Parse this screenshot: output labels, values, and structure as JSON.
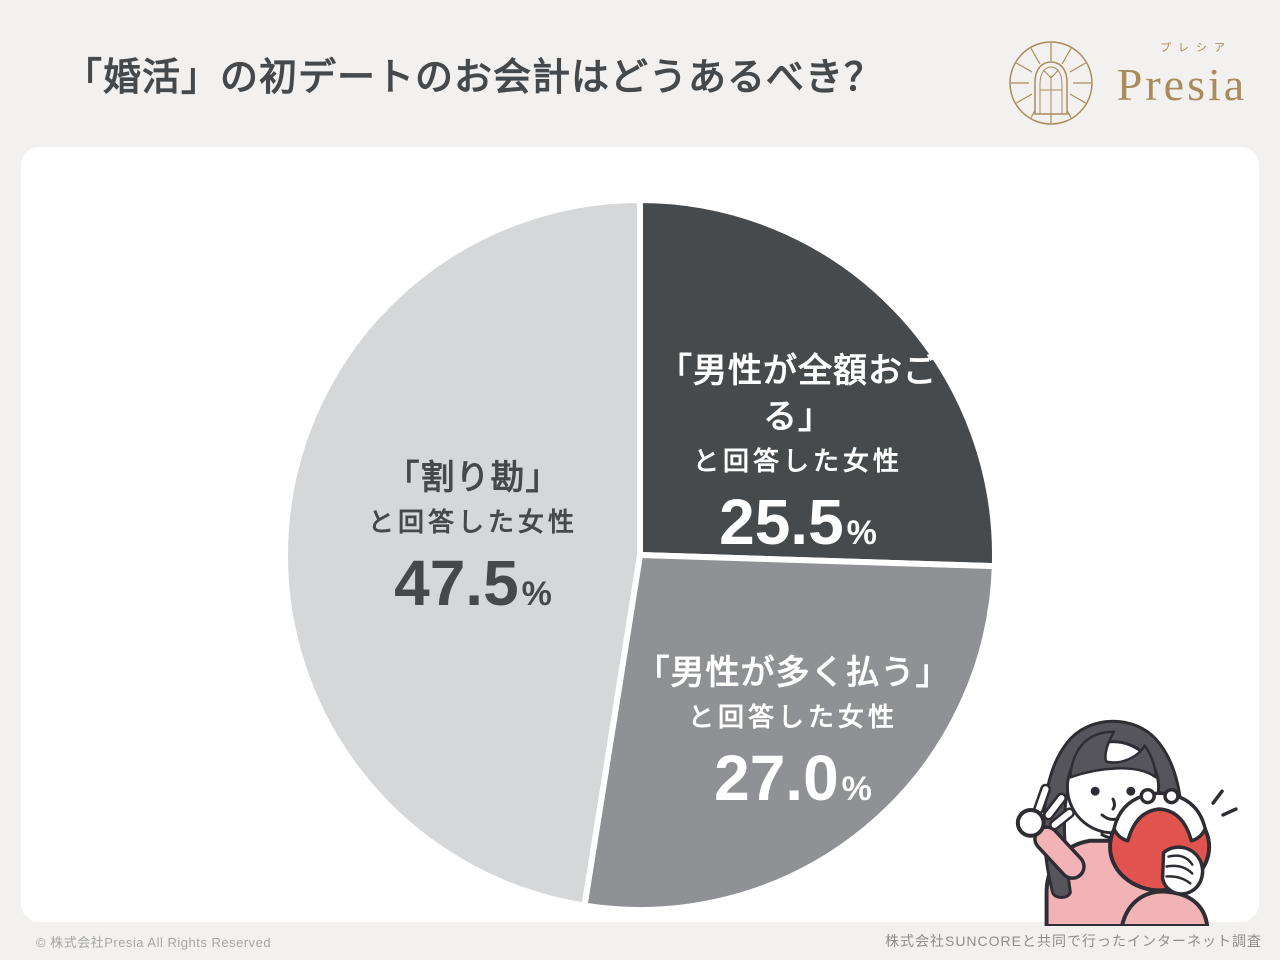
{
  "header": {
    "title": "「婚活」の初デートのお会計はどうあるべき？",
    "logo": {
      "furigana": "プレシア",
      "name": "Presia",
      "color": "#a98c5b"
    }
  },
  "chart_data": {
    "type": "pie",
    "title": "「婚活」の初デートのお会計はどうあるべき？",
    "direction": "clockwise",
    "start_angle_deg": 0,
    "gap_color": "#ffffff",
    "values_unit": "%",
    "legend": "labels-inside-slices",
    "slices": [
      {
        "label": "「男性が全額おごる」と回答した女性",
        "label_line1": "「男性が全額おごる」",
        "label_line2": "と回答した女性",
        "value": 25.5,
        "value_text": "25.5",
        "unit": "%",
        "color": "#474a4d",
        "text_color": "#ffffff"
      },
      {
        "label": "「男性が多く払う」と回答した女性",
        "label_line1": "「男性が多く払う」",
        "label_line2": "と回答した女性",
        "value": 27.0,
        "value_text": "27.0",
        "unit": "%",
        "color": "#8f9194",
        "text_color": "#ffffff"
      },
      {
        "label": "「割り勘」と回答した女性",
        "label_line1": "「割り勘」",
        "label_line2": "と回答した女性",
        "value": 47.5,
        "value_text": "47.5",
        "unit": "%",
        "color": "#d6d7d8",
        "text_color": "#46494c"
      }
    ]
  },
  "footer": {
    "copyright": "© 株式会社Presia All Rights Reserved",
    "source": "株式会社SUNCOREと共同で行ったインターネット調査"
  },
  "illustration": {
    "name": "woman-ok-sign-with-coin-purse",
    "hair_color": "#57555c",
    "sweater_color": "#f2b3b7",
    "purse_color": "#e0534f",
    "outline_color": "#2f2d33"
  }
}
